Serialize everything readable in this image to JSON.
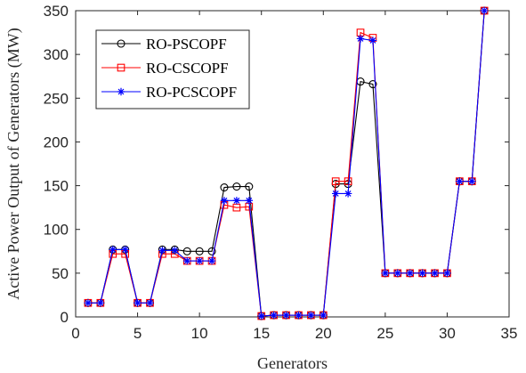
{
  "chart_data": {
    "type": "line",
    "title": "",
    "xlabel": "Generators",
    "ylabel": "Active Power Output of Generators (MW)",
    "xlim": [
      0,
      35
    ],
    "ylim": [
      0,
      350
    ],
    "xticks": [
      "0",
      "5",
      "10",
      "15",
      "20",
      "25",
      "30",
      "35"
    ],
    "yticks": [
      "0",
      "50",
      "100",
      "150",
      "200",
      "250",
      "300",
      "350"
    ],
    "grid": false,
    "legend_position": "top-left",
    "x": [
      1,
      2,
      3,
      4,
      5,
      6,
      7,
      8,
      9,
      10,
      11,
      12,
      13,
      14,
      15,
      16,
      17,
      18,
      19,
      20,
      21,
      22,
      23,
      24,
      25,
      26,
      27,
      28,
      29,
      30,
      31,
      32,
      33
    ],
    "series": [
      {
        "name": "RO-PSCOPF",
        "color": "#000000",
        "marker": "circle",
        "values": [
          16,
          16,
          77,
          77,
          16,
          16,
          77,
          77,
          75,
          75,
          75,
          148,
          149,
          149,
          1,
          2,
          2,
          2,
          2,
          2,
          152,
          152,
          269,
          266,
          50,
          50,
          50,
          50,
          50,
          50,
          155,
          155,
          350
        ]
      },
      {
        "name": "RO-CSCOPF",
        "color": "#ff0000",
        "marker": "square",
        "values": [
          16,
          16,
          72,
          72,
          16,
          16,
          72,
          72,
          64,
          64,
          64,
          128,
          125,
          126,
          1,
          2,
          2,
          2,
          2,
          2,
          155,
          155,
          325,
          319,
          50,
          50,
          50,
          50,
          50,
          50,
          155,
          155,
          350
        ]
      },
      {
        "name": "RO-PCSCOPF",
        "color": "#0000ff",
        "marker": "asterisk",
        "values": [
          16,
          16,
          77,
          77,
          16,
          16,
          76,
          76,
          64,
          64,
          64,
          133,
          133,
          133,
          1,
          2,
          2,
          2,
          2,
          2,
          141,
          141,
          318,
          316,
          50,
          50,
          50,
          50,
          50,
          50,
          155,
          155,
          350
        ]
      }
    ]
  }
}
